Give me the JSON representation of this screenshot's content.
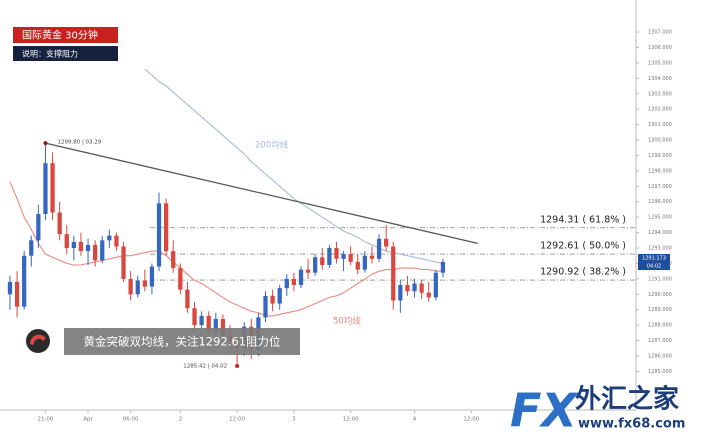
{
  "chart_data": {
    "type": "candlestick",
    "title": "国际黄金 30分钟",
    "subtitle": "说明：支撑阻力",
    "annotation": "黄金突破双均线，关注1292.61阻力位",
    "x": [
      0,
      1,
      2,
      3,
      4,
      5,
      6,
      7,
      8,
      9,
      10,
      11,
      12,
      13,
      14,
      15,
      16,
      17,
      18,
      19,
      20,
      21,
      22,
      23,
      24,
      25,
      26,
      27,
      28,
      29,
      30,
      31,
      32,
      33,
      34,
      35,
      36,
      37,
      38,
      39,
      40,
      41,
      42,
      43,
      44,
      45,
      46,
      47,
      48,
      49,
      50,
      51,
      52,
      53,
      54,
      55,
      56,
      57,
      58,
      59,
      60,
      61
    ],
    "open": [
      1290.0,
      1290.8,
      1289.2,
      1292.5,
      1293.5,
      1295.2,
      1298.5,
      1295.3,
      1293.9,
      1293.0,
      1293.4,
      1292.8,
      1293.2,
      1292.2,
      1293.5,
      1293.8,
      1293.1,
      1291.0,
      1290.0,
      1290.9,
      1290.5,
      1291.8,
      1295.9,
      1292.8,
      1291.7,
      1290.3,
      1289.1,
      1288.0,
      1288.6,
      1287.6,
      1288.4,
      1287.3,
      1286.9,
      1286.5,
      1287.9,
      1286.4,
      1288.5,
      1289.9,
      1289.4,
      1290.4,
      1291.0,
      1290.6,
      1291.6,
      1291.4,
      1292.4,
      1291.9,
      1293.0,
      1292.3,
      1292.6,
      1292.1,
      1291.6,
      1292.5,
      1292.3,
      1293.6,
      1293.1,
      1289.6,
      1290.6,
      1290.2,
      1290.7,
      1290.1,
      1289.8,
      1291.4
    ],
    "high": [
      1291.2,
      1291.5,
      1292.8,
      1293.8,
      1295.8,
      1299.8,
      1299.2,
      1296.0,
      1294.5,
      1293.8,
      1294.0,
      1293.6,
      1293.5,
      1293.8,
      1294.2,
      1294.0,
      1293.4,
      1291.5,
      1291.2,
      1291.6,
      1292.0,
      1296.6,
      1296.2,
      1293.5,
      1292.0,
      1290.8,
      1289.5,
      1288.9,
      1288.9,
      1288.8,
      1288.7,
      1288.0,
      1287.5,
      1288.2,
      1288.4,
      1288.8,
      1290.2,
      1290.3,
      1290.6,
      1291.3,
      1291.4,
      1291.8,
      1292.3,
      1292.6,
      1293.0,
      1293.2,
      1293.4,
      1292.8,
      1293.1,
      1292.6,
      1292.8,
      1293.1,
      1293.9,
      1294.5,
      1293.4,
      1290.9,
      1291.2,
      1291.0,
      1290.9,
      1290.8,
      1291.6,
      1292.3
    ],
    "low": [
      1289.0,
      1288.5,
      1289.0,
      1291.8,
      1293.0,
      1294.8,
      1294.8,
      1293.5,
      1292.6,
      1292.2,
      1292.5,
      1291.9,
      1291.8,
      1292.0,
      1293.0,
      1292.8,
      1290.8,
      1289.6,
      1289.8,
      1290.2,
      1290.0,
      1291.5,
      1292.5,
      1291.4,
      1290.0,
      1288.8,
      1287.6,
      1287.3,
      1287.2,
      1287.0,
      1286.8,
      1286.2,
      1285.42,
      1286.0,
      1285.8,
      1286.0,
      1288.2,
      1288.9,
      1289.0,
      1289.9,
      1290.2,
      1290.4,
      1291.0,
      1291.2,
      1291.6,
      1291.7,
      1292.0,
      1291.5,
      1291.9,
      1291.3,
      1291.4,
      1292.0,
      1292.1,
      1292.8,
      1289.0,
      1288.8,
      1289.9,
      1289.8,
      1289.7,
      1289.5,
      1289.6,
      1291.1
    ],
    "close": [
      1290.8,
      1289.2,
      1292.5,
      1293.5,
      1295.2,
      1298.5,
      1295.3,
      1293.9,
      1293.0,
      1293.4,
      1292.8,
      1293.2,
      1292.2,
      1293.5,
      1293.8,
      1293.1,
      1291.0,
      1290.0,
      1290.9,
      1290.5,
      1291.8,
      1295.9,
      1292.8,
      1291.7,
      1290.3,
      1289.1,
      1288.0,
      1288.6,
      1287.6,
      1288.4,
      1287.3,
      1286.9,
      1286.5,
      1287.9,
      1286.4,
      1288.5,
      1289.9,
      1289.4,
      1290.4,
      1291.0,
      1290.6,
      1291.6,
      1291.4,
      1292.4,
      1291.9,
      1293.0,
      1292.3,
      1292.6,
      1292.1,
      1291.6,
      1292.5,
      1292.3,
      1293.6,
      1293.1,
      1289.6,
      1290.6,
      1290.2,
      1290.7,
      1290.1,
      1289.8,
      1291.4,
      1292.1
    ],
    "up_color": "#3567c0",
    "down_color": "#d9473f",
    "series": [
      {
        "name": "200均线",
        "color": "#a9b9db",
        "values": [
          null,
          null,
          null,
          null,
          null,
          null,
          null,
          null,
          null,
          null,
          null,
          null,
          null,
          null,
          null,
          null,
          null,
          null,
          null,
          1304.6,
          1304.2,
          1303.8,
          1303.5,
          1303.1,
          1302.7,
          1302.3,
          1301.9,
          1301.5,
          1301.1,
          1300.7,
          1300.3,
          1299.9,
          1299.5,
          1299.1,
          1298.6,
          1298.2,
          1297.8,
          1297.4,
          1297.0,
          1296.6,
          1296.2,
          1295.9,
          1295.6,
          1295.3,
          1295.0,
          1294.7,
          1294.4,
          1294.1,
          1293.9,
          1293.7,
          1293.4,
          1293.2,
          1293.0,
          1292.8,
          1292.7,
          1292.6,
          1292.5,
          1292.4,
          1292.3,
          1292.2,
          1292.1,
          1292.0
        ]
      },
      {
        "name": "50均线",
        "color": "#ec8a80",
        "values": [
          1297.3,
          1296.2,
          1295.0,
          1294.2,
          1293.3,
          1292.6,
          1292.4,
          1292.2,
          1292.0,
          1291.9,
          1291.9,
          1292.0,
          1292.1,
          1292.2,
          1292.3,
          1292.4,
          1292.5,
          1292.5,
          1292.6,
          1292.7,
          1292.8,
          1292.8,
          1292.5,
          1292.1,
          1291.7,
          1291.3,
          1290.9,
          1290.7,
          1290.4,
          1290.1,
          1289.8,
          1289.5,
          1289.3,
          1289.1,
          1288.9,
          1288.8,
          1288.6,
          1288.6,
          1288.7,
          1288.8,
          1288.9,
          1289.0,
          1289.2,
          1289.4,
          1289.6,
          1289.8,
          1289.9,
          1290.1,
          1290.4,
          1290.7,
          1291.0,
          1291.3,
          1291.5,
          1291.6,
          1291.6,
          1291.7,
          1291.7,
          1291.7,
          1291.6,
          1291.6,
          1291.5,
          1291.5
        ]
      }
    ],
    "levels": [
      {
        "value": 1294.31,
        "label": "1294.31 ( 61.8% )"
      },
      {
        "value": 1292.61,
        "label": "1292.61 ( 50.0% )"
      },
      {
        "value": 1290.92,
        "label": "1290.92 ( 38.2% )"
      }
    ],
    "trendline": {
      "x": [
        5,
        65.9
      ],
      "y": [
        1299.8,
        1293.3
      ]
    },
    "points": [
      {
        "x": 5,
        "y": 1299.8,
        "label": "1299.80 | 03.29"
      },
      {
        "x": 32,
        "y": 1285.42,
        "label": "1285.42 | 04.02"
      }
    ],
    "price_tag": [
      "1291.173",
      "04:02"
    ],
    "xlim": [
      -0.7,
      88.2
    ],
    "ylim": [
      1282.5,
      1308.3
    ],
    "xticks": [
      {
        "value": 5,
        "label": "21:00"
      },
      {
        "value": 11,
        "label": "Apr"
      },
      {
        "value": 17,
        "label": "06:00"
      },
      {
        "value": 24,
        "label": "2"
      },
      {
        "value": 32,
        "label": "12:00"
      },
      {
        "value": 40,
        "label": "3"
      },
      {
        "value": 48,
        "label": "12:00"
      },
      {
        "value": 57,
        "label": "4"
      },
      {
        "value": 65,
        "label": "12:00"
      }
    ],
    "yticks": [
      {
        "value": 1285,
        "label": "1285.000"
      },
      {
        "value": 1286,
        "label": "1286.000"
      },
      {
        "value": 1287,
        "label": "1287.000"
      },
      {
        "value": 1288,
        "label": "1288.000"
      },
      {
        "value": 1289,
        "label": "1289.000"
      },
      {
        "value": 1290,
        "label": "1290.000"
      },
      {
        "value": 1291,
        "label": "1291.000"
      },
      {
        "value": 1292,
        "label": "1292.000"
      },
      {
        "value": 1293,
        "label": "1293.000"
      },
      {
        "value": 1294,
        "label": "1294.000"
      },
      {
        "value": 1295,
        "label": "1295.000"
      },
      {
        "value": 1296,
        "label": "1296.000"
      },
      {
        "value": 1297,
        "label": "1297.000"
      },
      {
        "value": 1298,
        "label": "1298.000"
      },
      {
        "value": 1299,
        "label": "1299.000"
      },
      {
        "value": 1300,
        "label": "1300.000"
      },
      {
        "value": 1301,
        "label": "1301.000"
      },
      {
        "value": 1302,
        "label": "1302.000"
      },
      {
        "value": 1303,
        "label": "1303.000"
      },
      {
        "value": 1304,
        "label": "1304.000"
      },
      {
        "value": 1305,
        "label": "1305.000"
      },
      {
        "value": 1306,
        "label": "1306.000"
      },
      {
        "value": 1307,
        "label": "1307.000"
      }
    ]
  },
  "watermark": {
    "logo": "FX",
    "brand": "外汇之家",
    "url": "www.fx68.com"
  }
}
